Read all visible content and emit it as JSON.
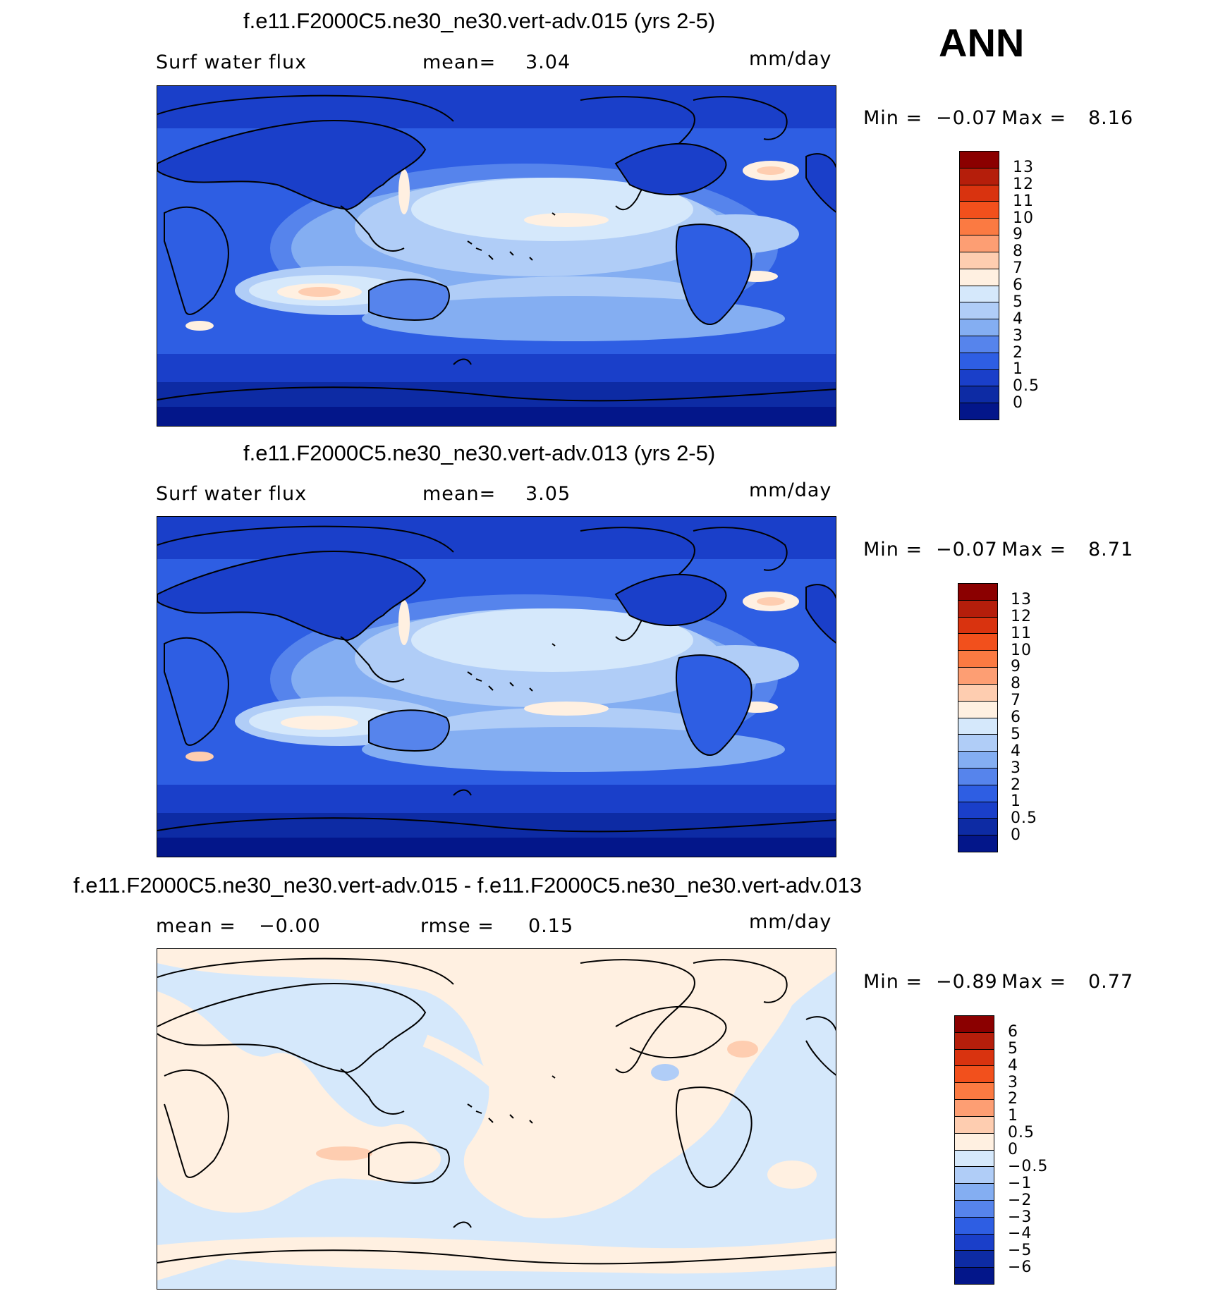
{
  "season_label": "ANN",
  "panels": [
    {
      "title": "f.e11.F2000C5.ne30_ne30.vert-adv.015 (yrs 2-5)",
      "variable": "Surf water flux",
      "stat1_label": "mean=",
      "stat1_value": "3.04",
      "stat2_label": "",
      "stat2_value": "",
      "units": "mm/day",
      "min_label": "Min =",
      "min_value": "−0.07",
      "max_label": "Max =",
      "max_value": "8.16",
      "colorbar_labels": [
        "13",
        "12",
        "11",
        "10",
        "9",
        "8",
        "7",
        "6",
        "5",
        "4",
        "3",
        "2",
        "1",
        "0.5",
        "0"
      ],
      "colorbar_colors": [
        "#8b0000",
        "#b51e0b",
        "#d9330f",
        "#f2501c",
        "#fb7a42",
        "#fd9e73",
        "#fecdb0",
        "#fff0e1",
        "#d5e8fb",
        "#b0cdf7",
        "#84aef2",
        "#5684ec",
        "#2e5ee3",
        "#1a3fc9",
        "#0d2ba4",
        "#03168a"
      ]
    },
    {
      "title": "f.e11.F2000C5.ne30_ne30.vert-adv.013 (yrs 2-5)",
      "variable": "Surf water flux",
      "stat1_label": "mean=",
      "stat1_value": "3.05",
      "stat2_label": "",
      "stat2_value": "",
      "units": "mm/day",
      "min_label": "Min =",
      "min_value": "−0.07",
      "max_label": "Max =",
      "max_value": "8.71",
      "colorbar_labels": [
        "13",
        "12",
        "11",
        "10",
        "9",
        "8",
        "7",
        "6",
        "5",
        "4",
        "3",
        "2",
        "1",
        "0.5",
        "0"
      ],
      "colorbar_colors": [
        "#8b0000",
        "#b51e0b",
        "#d9330f",
        "#f2501c",
        "#fb7a42",
        "#fd9e73",
        "#fecdb0",
        "#fff0e1",
        "#d5e8fb",
        "#b0cdf7",
        "#84aef2",
        "#5684ec",
        "#2e5ee3",
        "#1a3fc9",
        "#0d2ba4",
        "#03168a"
      ]
    },
    {
      "title": "f.e11.F2000C5.ne30_ne30.vert-adv.015 - f.e11.F2000C5.ne30_ne30.vert-adv.013",
      "variable": "",
      "stat1_label": "mean =",
      "stat1_value": "−0.00",
      "stat2_label": "rmse =",
      "stat2_value": "0.15",
      "units": "mm/day",
      "min_label": "Min =",
      "min_value": "−0.89",
      "max_label": "Max =",
      "max_value": "0.77",
      "colorbar_labels": [
        "6",
        "5",
        "4",
        "3",
        "2",
        "1",
        "0.5",
        "0",
        "−0.5",
        "−1",
        "−2",
        "−3",
        "−4",
        "−5",
        "−6"
      ],
      "colorbar_colors": [
        "#8b0000",
        "#b51e0b",
        "#d9330f",
        "#f2501c",
        "#fb7a42",
        "#fd9e73",
        "#fecdb0",
        "#fff0e1",
        "#d5e8fb",
        "#b0cdf7",
        "#84aef2",
        "#5684ec",
        "#2e5ee3",
        "#1a3fc9",
        "#0d2ba4",
        "#03168a"
      ]
    }
  ],
  "map_palette": {
    "deep": "#03168a",
    "dark": "#0d2ba4",
    "mid_dark": "#1a3fc9",
    "mid": "#2e5ee3",
    "mid_light": "#5684ec",
    "light": "#84aef2",
    "pale": "#b0cdf7",
    "very_pale": "#d5e8fb",
    "peach": "#fff0e1",
    "salmon": "#fecdb0",
    "pink": "#fd9e73",
    "coast": "#000000"
  }
}
